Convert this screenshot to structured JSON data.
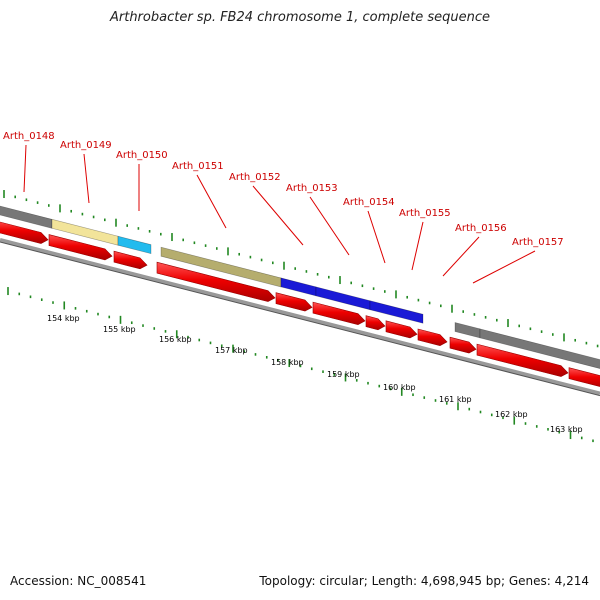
{
  "title": "Arthrobacter sp. FB24 chromosome 1, complete sequence",
  "accession": "Accession: NC_008541",
  "summary": "Topology: circular; Length: 4,698,945 bp; Genes: 4,214",
  "colors": {
    "gene_red": "#ee0000",
    "tick_green": "#228822",
    "label_red": "#cc0000",
    "backbone_gray": "#888888",
    "cog_gray": "#777777",
    "cog_yellow": "#f2e49a",
    "cog_cyan": "#22bbee",
    "cog_olive": "#b5ad6e",
    "cog_blue": "#1a1ad6"
  },
  "gene_labels": [
    "Arth_0148",
    "Arth_0149",
    "Arth_0150",
    "Arth_0151",
    "Arth_0152",
    "Arth_0153",
    "Arth_0154",
    "Arth_0155",
    "Arth_0156",
    "Arth_0157"
  ],
  "kbp_labels": [
    "154 kbp",
    "155 kbp",
    "156 kbp",
    "157 kbp",
    "158 kbp",
    "159 kbp",
    "160 kbp",
    "161 kbp",
    "162 kbp",
    "163 kbp"
  ]
}
